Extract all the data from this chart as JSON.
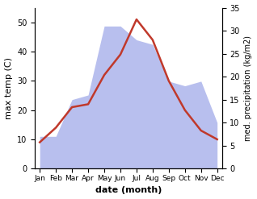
{
  "months": [
    "Jan",
    "Feb",
    "Mar",
    "Apr",
    "May",
    "Jun",
    "Jul",
    "Aug",
    "Sep",
    "Oct",
    "Nov",
    "Dec"
  ],
  "temperature": [
    9,
    14,
    21,
    22,
    32,
    39,
    51,
    44,
    30,
    20,
    13,
    10
  ],
  "precipitation": [
    7,
    7,
    15,
    16,
    31,
    31,
    28,
    27,
    19,
    18,
    19,
    10
  ],
  "temp_color": "#c0392b",
  "precip_fill_color": "#b8bfee",
  "temp_ylim": [
    0,
    55
  ],
  "precip_ylim": [
    0,
    35
  ],
  "temp_yticks": [
    0,
    10,
    20,
    30,
    40,
    50
  ],
  "precip_yticks": [
    0,
    5,
    10,
    15,
    20,
    25,
    30,
    35
  ],
  "xlabel": "date (month)",
  "ylabel_left": "max temp (C)",
  "ylabel_right": "med. precipitation (kg/m2)",
  "background_color": "#ffffff"
}
